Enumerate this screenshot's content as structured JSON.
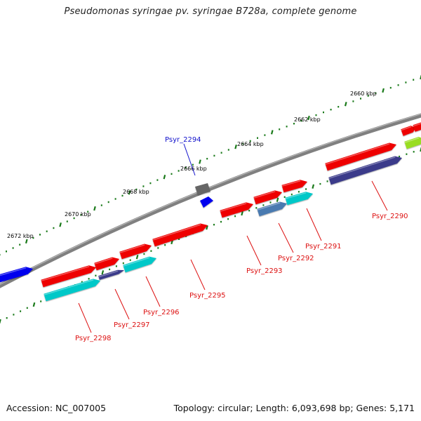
{
  "title": "Pseudomonas syringae pv. syringae B728a, complete genome",
  "footer": {
    "accession": "Accession: NC_007005",
    "summary": "Topology: circular; Length: 6,093,698 bp; Genes: 5,171"
  },
  "colors": {
    "backbone": "#808080",
    "tick": "#1a7a1a",
    "label_red": "#dd1111",
    "label_blue": "#1111cc",
    "gene_red": "#ee0000",
    "gene_cyan": "#00c8c8",
    "gene_navy": "#3a3a8a",
    "gene_steel": "#4a7ab0",
    "gene_blue": "#0000ee",
    "gene_gray": "#666666",
    "gene_lime": "#99dd22"
  },
  "scale_labels": [
    "2672 kbp",
    "2670 kbp",
    "2668 kbp",
    "2666 kbp",
    "2664 kbp",
    "2662 kbp",
    "2660 kbp"
  ],
  "gene_labels": [
    "Psyr_2294",
    "Psyr_2290",
    "Psyr_2291",
    "Psyr_2292",
    "Psyr_2293",
    "Psyr_2295",
    "Psyr_2296",
    "Psyr_2297",
    "Psyr_2298"
  ]
}
